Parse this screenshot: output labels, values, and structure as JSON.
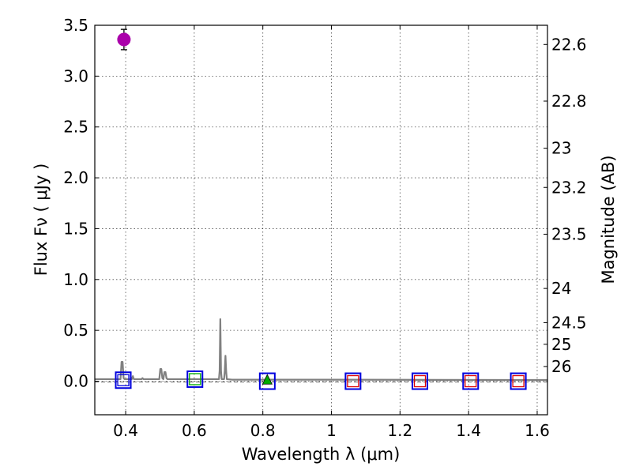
{
  "chart_data": {
    "type": "scatter",
    "title": "",
    "xlabel": "Wavelength  λ (μm)",
    "ylabel": "Flux  Fν  ( μJy )",
    "ylabel_right": "Magnitude (AB)",
    "xlim": [
      0.31,
      1.63
    ],
    "ylim": [
      -0.33,
      3.5
    ],
    "grid": true,
    "x_ticks": [
      0.4,
      0.6,
      0.8,
      1.0,
      1.2,
      1.4,
      1.6
    ],
    "x_tick_labels": [
      "0.4",
      "0.6",
      "0.8",
      "1",
      "1.2",
      "1.4",
      "1.6"
    ],
    "y_ticks": [
      0.0,
      0.5,
      1.0,
      1.5,
      2.0,
      2.5,
      3.0,
      3.5
    ],
    "y_tick_labels": [
      "0.0",
      "0.5",
      "1.0",
      "1.5",
      "2.0",
      "2.5",
      "3.0",
      "3.5"
    ],
    "mag_ticks": [
      22.6,
      22.8,
      23,
      23.2,
      23.5,
      24,
      24.5,
      25,
      26
    ],
    "mag_tick_labels": [
      "22.6",
      "22.8",
      "23",
      "23.2",
      "23.5",
      "24",
      "24.5",
      "25",
      "26"
    ],
    "mag_zeropoint": 23.9,
    "colors": {
      "detection": "#aa00aa",
      "model_box": "#0000dd",
      "phot_green": "#00aa00",
      "phot_red": "#dd0000",
      "spectrum": "#808080",
      "zero_line": "#808080"
    },
    "detection": {
      "x": 0.395,
      "y": 3.36,
      "yerr": 0.1
    },
    "model_fluxes": [
      {
        "x": 0.393,
        "y": 0.01
      },
      {
        "x": 0.602,
        "y": 0.02
      },
      {
        "x": 0.813,
        "y": 0.0
      },
      {
        "x": 1.063,
        "y": 0.0
      },
      {
        "x": 1.258,
        "y": 0.0
      },
      {
        "x": 1.406,
        "y": 0.0
      },
      {
        "x": 1.545,
        "y": 0.0
      }
    ],
    "observed_fluxes": [
      {
        "x": 0.393,
        "y": 0.01,
        "color": "#0000dd",
        "kind": "square"
      },
      {
        "x": 0.602,
        "y": 0.02,
        "color": "#00aa00",
        "kind": "square"
      },
      {
        "x": 0.813,
        "y": 0.01,
        "color": "#00aa00",
        "kind": "triangle"
      },
      {
        "x": 1.063,
        "y": 0.0,
        "color": "#dd0000",
        "kind": "square"
      },
      {
        "x": 1.258,
        "y": 0.0,
        "color": "#dd0000",
        "kind": "square"
      },
      {
        "x": 1.406,
        "y": 0.0,
        "color": "#dd0000",
        "kind": "square"
      },
      {
        "x": 1.545,
        "y": 0.0,
        "color": "#dd0000",
        "kind": "square"
      }
    ],
    "spectrum": {
      "x": [
        0.31,
        0.385,
        0.388,
        0.391,
        0.394,
        0.397,
        0.41,
        0.418,
        0.421,
        0.424,
        0.44,
        0.446,
        0.449,
        0.452,
        0.495,
        0.498,
        0.501,
        0.504,
        0.507,
        0.51,
        0.513,
        0.516,
        0.519,
        0.522,
        0.672,
        0.674,
        0.676,
        0.678,
        0.68,
        0.687,
        0.689,
        0.691,
        0.693,
        0.695,
        0.71,
        1.0,
        1.3,
        1.63
      ],
      "y": [
        0.02,
        0.02,
        0.19,
        0.19,
        0.03,
        0.02,
        0.02,
        0.02,
        0.05,
        0.02,
        0.02,
        0.02,
        0.03,
        0.02,
        0.02,
        0.02,
        0.12,
        0.12,
        0.03,
        0.02,
        0.09,
        0.09,
        0.03,
        0.02,
        0.02,
        0.1,
        0.61,
        0.1,
        0.02,
        0.02,
        0.1,
        0.25,
        0.1,
        0.02,
        0.015,
        0.015,
        0.013,
        0.012
      ]
    },
    "zero_line_y": 0.0
  }
}
